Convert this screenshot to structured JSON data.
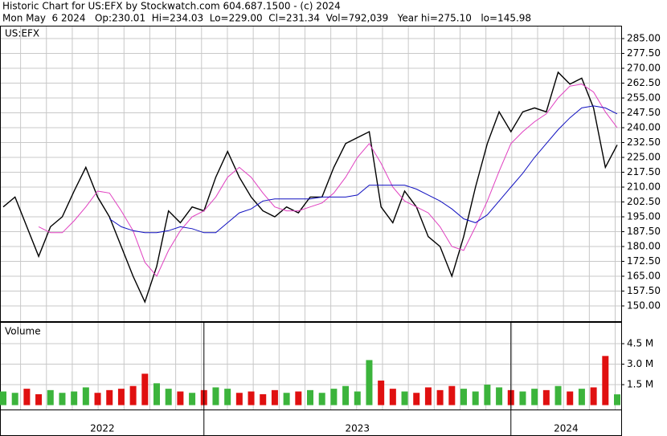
{
  "chart_data": [
    {
      "type": "line",
      "title": "Historic Chart for US:EFX by Stockwatch.com 604.687.1500 - (c) 2024",
      "subtitle": "Mon May  6 2024   Op:230.01  Hi=234.03  Lo=229.00  Cl=231.34  Vol=792,039   Year hi=275.10   lo=145.98",
      "panel_label": "US:EFX",
      "categories": [
        "2022",
        null,
        null,
        null,
        null,
        null,
        null,
        null,
        null,
        null,
        null,
        null,
        null,
        null,
        null,
        null,
        null,
        "2023",
        null,
        null,
        null,
        null,
        null,
        null,
        null,
        null,
        null,
        null,
        null,
        null,
        null,
        null,
        null,
        null,
        null,
        null,
        null,
        null,
        null,
        null,
        null,
        null,
        null,
        "2024",
        null,
        null,
        null,
        null,
        null,
        null,
        null,
        null,
        null
      ],
      "series": [
        {
          "color": "#000000",
          "values": [
            200,
            205,
            190,
            175,
            190,
            195,
            208,
            220,
            205,
            195,
            180,
            165,
            152,
            170,
            198,
            192,
            200,
            198,
            215,
            228,
            215,
            205,
            198,
            195,
            200,
            197,
            205,
            205,
            220,
            232,
            235,
            238,
            200,
            192,
            208,
            200,
            185,
            180,
            165,
            185,
            210,
            232,
            248,
            238,
            248,
            250,
            248,
            268,
            262,
            265,
            250,
            220,
            231.34
          ]
        },
        {
          "color": "#e040c0",
          "values": [
            null,
            null,
            null,
            190,
            187,
            187,
            193,
            200,
            208,
            207,
            198,
            188,
            172,
            165,
            178,
            188,
            195,
            198,
            205,
            215,
            220,
            215,
            207,
            200,
            198,
            198,
            200,
            202,
            207,
            215,
            225,
            232,
            222,
            210,
            203,
            200,
            197,
            190,
            180,
            178,
            190,
            203,
            218,
            232,
            238,
            243,
            247,
            255,
            261,
            262,
            258,
            248,
            240
          ]
        },
        {
          "color": "#1010c0",
          "values": [
            null,
            null,
            null,
            null,
            null,
            null,
            null,
            null,
            null,
            194,
            190,
            188,
            187,
            187,
            188,
            190,
            189,
            187,
            187,
            192,
            197,
            199,
            203,
            204,
            204,
            204,
            204,
            205,
            205,
            205,
            206,
            211,
            211,
            211,
            211,
            209,
            206,
            203,
            199,
            194,
            192,
            196,
            203,
            210,
            217,
            225,
            232,
            239,
            245,
            250,
            251,
            250,
            247
          ]
        }
      ],
      "ylim": [
        142.3,
        291.1
      ],
      "yticks": [
        {
          "value": 150,
          "label": "150.00"
        },
        {
          "value": 157.5,
          "label": "157.50"
        },
        {
          "value": 165,
          "label": "165.00"
        },
        {
          "value": 172.5,
          "label": "172.50"
        },
        {
          "value": 180,
          "label": "180.00"
        },
        {
          "value": 187.5,
          "label": "187.50"
        },
        {
          "value": 195,
          "label": "195.00"
        },
        {
          "value": 202.5,
          "label": "202.50"
        },
        {
          "value": 210,
          "label": "210.00"
        },
        {
          "value": 217.5,
          "label": "217.50"
        },
        {
          "value": 225,
          "label": "225.00"
        },
        {
          "value": 232.5,
          "label": "232.50"
        },
        {
          "value": 240,
          "label": "240.00"
        },
        {
          "value": 247.5,
          "label": "247.50"
        },
        {
          "value": 255,
          "label": "255.00"
        },
        {
          "value": 262.5,
          "label": "262.50"
        },
        {
          "value": 270,
          "label": "270.00"
        },
        {
          "value": 277.5,
          "label": "277.50"
        },
        {
          "value": 285,
          "label": "285.00"
        }
      ],
      "grid": true
    },
    {
      "type": "bar",
      "panel_label": "Volume",
      "values": [
        1.0,
        0.9,
        1.2,
        0.8,
        1.1,
        0.9,
        1.0,
        1.3,
        0.9,
        1.1,
        1.2,
        1.4,
        2.3,
        1.6,
        1.2,
        1.0,
        0.9,
        1.1,
        1.3,
        1.2,
        0.9,
        1.0,
        0.8,
        1.1,
        0.9,
        1.0,
        1.1,
        0.9,
        1.2,
        1.4,
        1.0,
        3.3,
        1.8,
        1.2,
        1.0,
        0.9,
        1.3,
        1.1,
        1.4,
        1.2,
        1.0,
        1.5,
        1.3,
        1.1,
        1.0,
        1.2,
        1.1,
        1.4,
        1.0,
        1.2,
        1.3,
        3.6,
        0.79
      ],
      "up_color": "#3cb43c",
      "down_color": "#e01010",
      "ylim": [
        -0.32,
        6.03
      ],
      "yticks": [
        {
          "value": 1.5,
          "label": "1.5 M"
        },
        {
          "value": 3.0,
          "label": "3.0 M"
        },
        {
          "value": 4.5,
          "label": "4.5 M"
        }
      ],
      "grid": true
    }
  ]
}
